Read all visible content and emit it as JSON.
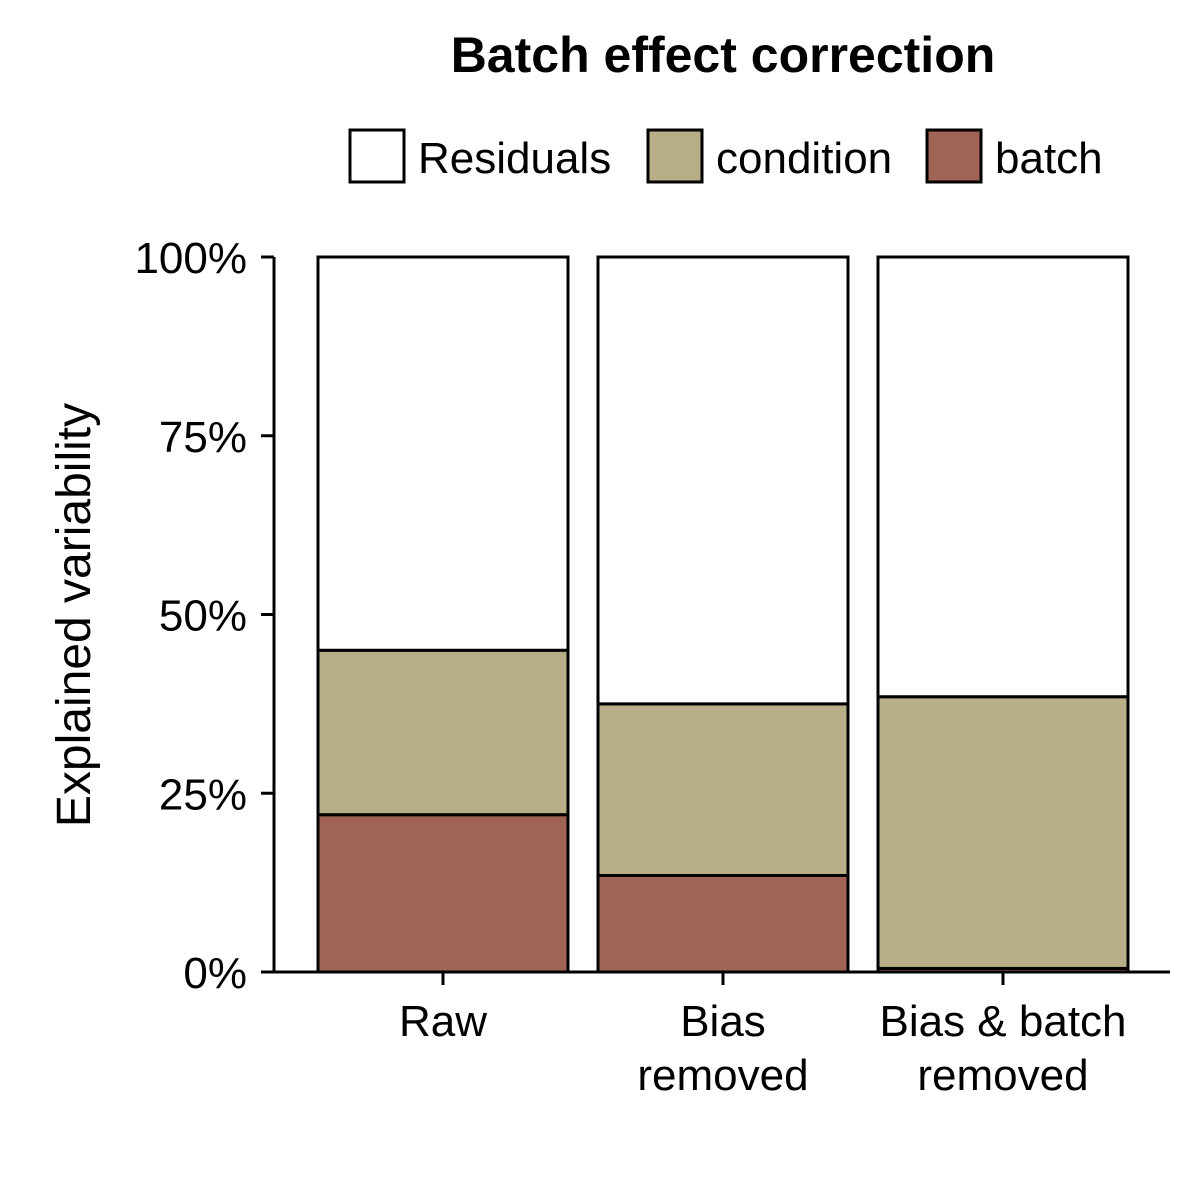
{
  "chart_data": {
    "type": "bar",
    "stacked": true,
    "normalized": true,
    "title": "Batch effect correction",
    "xlabel": "",
    "ylabel": "Explained variability",
    "ylim": [
      0,
      100
    ],
    "y_ticks": [
      "0%",
      "25%",
      "50%",
      "75%",
      "100%"
    ],
    "categories": [
      [
        "Raw"
      ],
      [
        "Bias",
        "removed"
      ],
      [
        "Bias & batch",
        "removed"
      ]
    ],
    "series": [
      {
        "name": "batch",
        "color": "#a06456",
        "values": [
          22,
          13.5,
          0.5
        ]
      },
      {
        "name": "condition",
        "color": "#b8ae87",
        "values": [
          23,
          24,
          38
        ]
      },
      {
        "name": "Residuals",
        "color": "#ffffff",
        "values": [
          55,
          62.5,
          61.5
        ]
      }
    ],
    "legend": {
      "position": "top",
      "entries": [
        "Residuals",
        "condition",
        "batch"
      ]
    },
    "grid": false
  }
}
